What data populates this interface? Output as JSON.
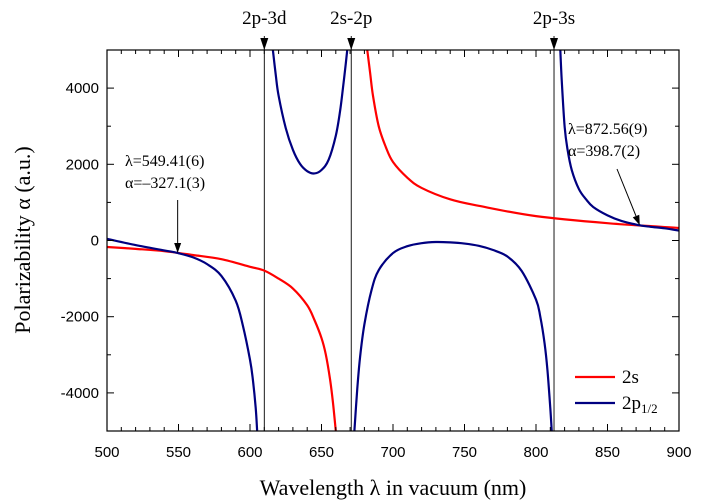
{
  "chart_data": {
    "type": "line",
    "xlabel": "Wavelength λ in vacuum (nm)",
    "ylabel": "Polarizability α (a.u.)",
    "xlim": [
      500,
      900
    ],
    "ylim": [
      -5000,
      5000
    ],
    "xticks": [
      500,
      550,
      600,
      650,
      700,
      750,
      800,
      850,
      900
    ],
    "yticks": [
      -4000,
      -2000,
      0,
      2000,
      4000
    ],
    "xtick_labels": [
      "500",
      "550",
      "600",
      "650",
      "700",
      "750",
      "800",
      "850",
      "900"
    ],
    "ytick_labels": [
      "-4000",
      "-2000",
      "0",
      "2000",
      "4000"
    ],
    "grid": false,
    "legend_position": "bottom-right",
    "series": [
      {
        "name": "2s",
        "name_sub": "",
        "color": "#ff0000",
        "segments": [
          {
            "x": [
              500,
              520,
              540,
              560,
              580,
              600,
              610,
              620,
              630,
              640,
              645,
              650,
              653,
              656,
              658,
              660
            ],
            "y": [
              -170,
              -220,
              -280,
              -380,
              -490,
              -690,
              -790,
              -1000,
              -1260,
              -1700,
              -2080,
              -2560,
              -2990,
              -3650,
              -4250,
              -5000
            ]
          },
          {
            "x": [
              682,
              684,
              686,
              690,
              695,
              700,
              710,
              720,
              740,
              760,
              800,
              850,
              900
            ],
            "y": [
              5000,
              4400,
              3800,
              3000,
              2450,
              2060,
              1650,
              1380,
              1080,
              910,
              640,
              455,
              330
            ]
          }
        ]
      },
      {
        "name": "2p",
        "name_sub": "1/2",
        "color": "#000080",
        "segments": [
          {
            "x": [
              500,
              520,
              540,
              549.41,
              560,
              570,
              580,
              590,
              595,
              600,
              602,
              604,
              605
            ],
            "y": [
              45,
              -120,
              -260,
              -327,
              -440,
              -620,
              -930,
              -1580,
              -2230,
              -3130,
              -3650,
              -4400,
              -5000
            ]
          },
          {
            "x": [
              616,
              618,
              620,
              625,
              630,
              635,
              640,
              645,
              650,
              655,
              660,
              663,
              665,
              667,
              668
            ],
            "y": [
              5000,
              4350,
              3800,
              2950,
              2380,
              2010,
              1820,
              1760,
              1850,
              2120,
              2750,
              3400,
              4000,
              4650,
              5000
            ]
          },
          {
            "x": [
              673,
              675,
              677,
              680,
              685,
              690,
              700,
              710,
              720,
              730,
              740,
              750,
              760,
              770,
              780,
              790,
              800,
              803,
              806,
              808,
              810,
              811
            ],
            "y": [
              -5000,
              -3900,
              -3050,
              -2200,
              -1300,
              -780,
              -330,
              -150,
              -70,
              -40,
              -50,
              -80,
              -140,
              -250,
              -420,
              -800,
              -1550,
              -2000,
              -2700,
              -3400,
              -4400,
              -5000
            ]
          },
          {
            "x": [
              817,
              818,
              820,
              822,
              825,
              830,
              835,
              840,
              850,
              860,
              872.56,
              880,
              890,
              900
            ],
            "y": [
              5000,
              4200,
              3000,
              2400,
              1850,
              1350,
              1080,
              880,
              660,
              510,
              399,
              360,
              320,
              260
            ]
          }
        ]
      }
    ],
    "transitions": [
      {
        "label": "2p-3d",
        "x": 610
      },
      {
        "label": "2s-2p",
        "x": 670.8
      },
      {
        "label": "2p-3s",
        "x": 812.6
      }
    ],
    "annotations": [
      {
        "line1": "λ=549.41(6)",
        "line2": "α=–327.1(3)",
        "x": 549.41,
        "y": -327.1,
        "position": "upper-left"
      },
      {
        "line1": "λ=872.56(9)",
        "line2": "α=398.7(2)",
        "x": 872.56,
        "y": 398.7,
        "position": "upper-right"
      }
    ]
  }
}
